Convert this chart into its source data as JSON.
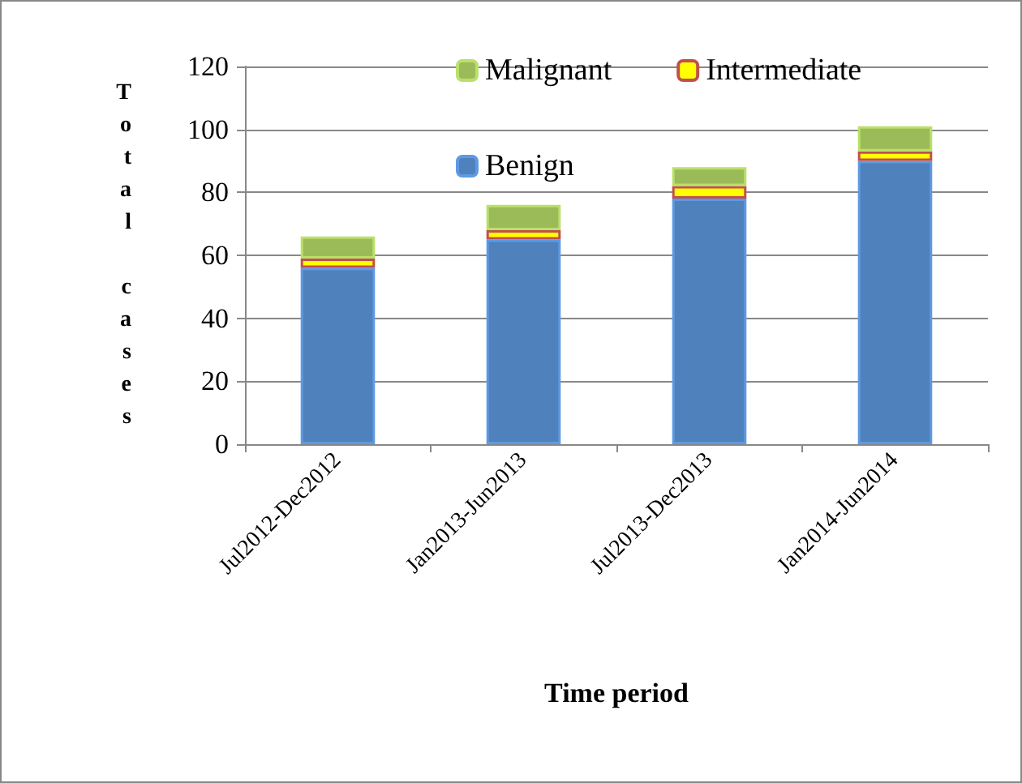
{
  "chart_data": {
    "type": "bar",
    "stacked": true,
    "xlabel": "Time period",
    "ylabel": "Total cases",
    "categories": [
      "Jul2012-Dec2012",
      "Jan2013-Jun2013",
      "Jul2013-Dec2013",
      "Jan2014-Jun2014"
    ],
    "series": [
      {
        "name": "Benign",
        "color": "#4f81bd",
        "values": [
          56,
          65,
          78,
          90
        ]
      },
      {
        "name": "Intermediate",
        "color": "#ffff00",
        "values": [
          3,
          3,
          4,
          3
        ]
      },
      {
        "name": "Malignant",
        "color": "#9bbb59",
        "values": [
          7,
          8,
          6,
          8
        ]
      }
    ],
    "ylim": [
      0,
      120
    ],
    "yticks": [
      0,
      20,
      40,
      60,
      80,
      100,
      120
    ],
    "grid": "y",
    "legend": "top"
  }
}
